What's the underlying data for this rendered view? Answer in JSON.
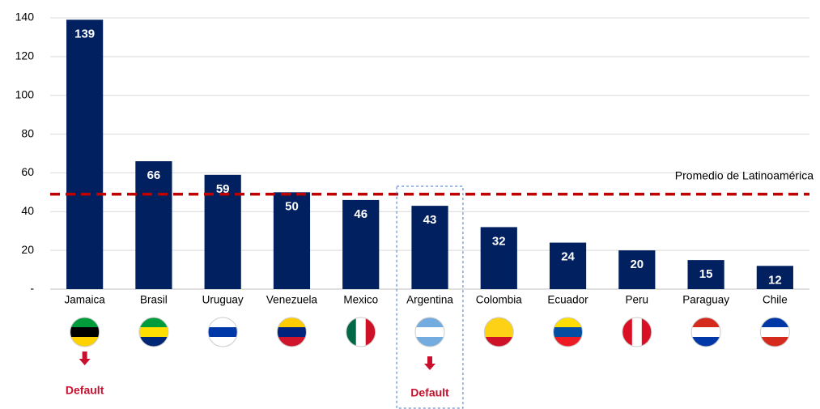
{
  "chart_data": {
    "type": "bar",
    "categories": [
      "Jamaica",
      "Brasil",
      "Uruguay",
      "Venezuela",
      "Mexico",
      "Argentina",
      "Colombia",
      "Ecuador",
      "Peru",
      "Paraguay",
      "Chile"
    ],
    "values": [
      139,
      66,
      59,
      50,
      46,
      43,
      32,
      24,
      20,
      15,
      12
    ],
    "color": "#002060",
    "ylim": [
      0,
      140
    ],
    "yticks": [
      {
        "value": 0,
        "label": "-"
      },
      20,
      40,
      60,
      80,
      100,
      120,
      140
    ],
    "grid": true,
    "reference_line": {
      "value": 49,
      "label": "Promedio de Latinoamérica",
      "color": "#c00000"
    },
    "annotations": [
      {
        "category": "Jamaica",
        "label": "Default"
      },
      {
        "category": "Argentina",
        "label": "Default"
      }
    ]
  }
}
